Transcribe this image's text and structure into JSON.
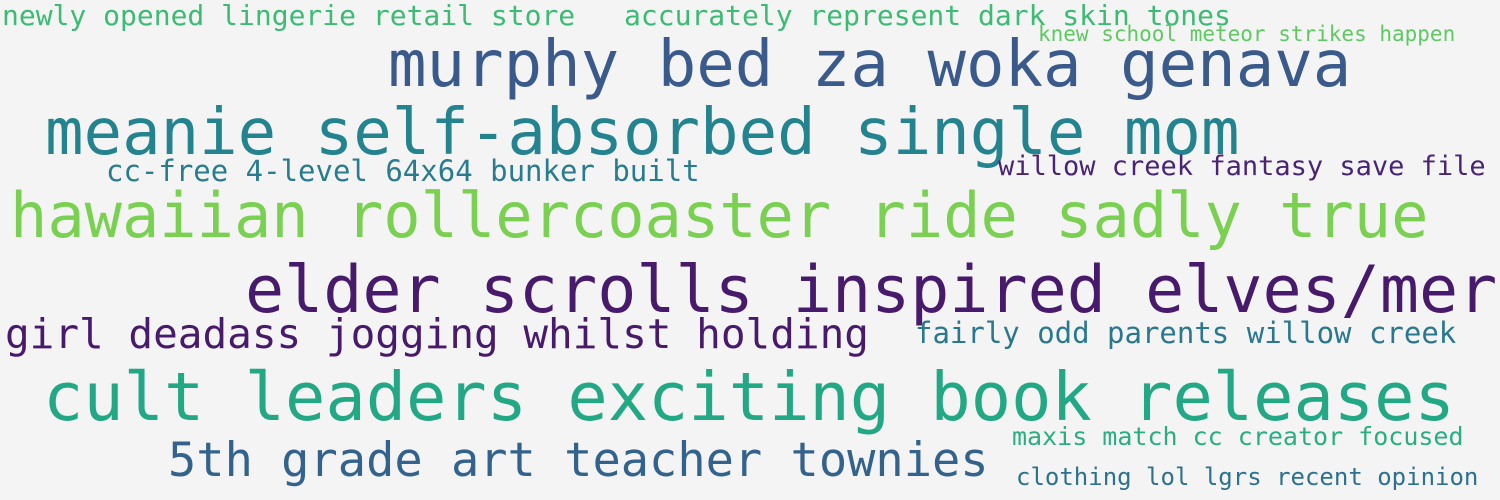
{
  "background": "#f4f4f4",
  "phrases": [
    {
      "text": "newly opened lingerie retail store",
      "color": "#3cbb75"
    },
    {
      "text": "accurately represent dark skin tones",
      "color": "#3cbb75"
    },
    {
      "text": "knew school meteor strikes happen",
      "color": "#5ec962"
    },
    {
      "text": "murphy bed za woka genava",
      "color": "#3b5a8c"
    },
    {
      "text": "meanie self-absorbed single mom",
      "color": "#23838e"
    },
    {
      "text": "cc-free 4-level 64x64 bunker built",
      "color": "#287c8e"
    },
    {
      "text": "willow creek fantasy save file",
      "color": "#482475"
    },
    {
      "text": "hawaiian rollercoaster ride sadly true",
      "color": "#7ad151"
    },
    {
      "text": "elder scrolls inspired elves/mer",
      "color": "#481a6c"
    },
    {
      "text": "girl deadass jogging whilst holding",
      "color": "#481a6c"
    },
    {
      "text": "fairly odd parents willow creek",
      "color": "#2a788e"
    },
    {
      "text": "cult leaders exciting book releases",
      "color": "#22a884"
    },
    {
      "text": "maxis match cc creator focused",
      "color": "#29af7f"
    },
    {
      "text": "5th grade art teacher townies",
      "color": "#33638d"
    },
    {
      "text": "clothing lol lgrs recent opinion",
      "color": "#2c728e"
    }
  ]
}
